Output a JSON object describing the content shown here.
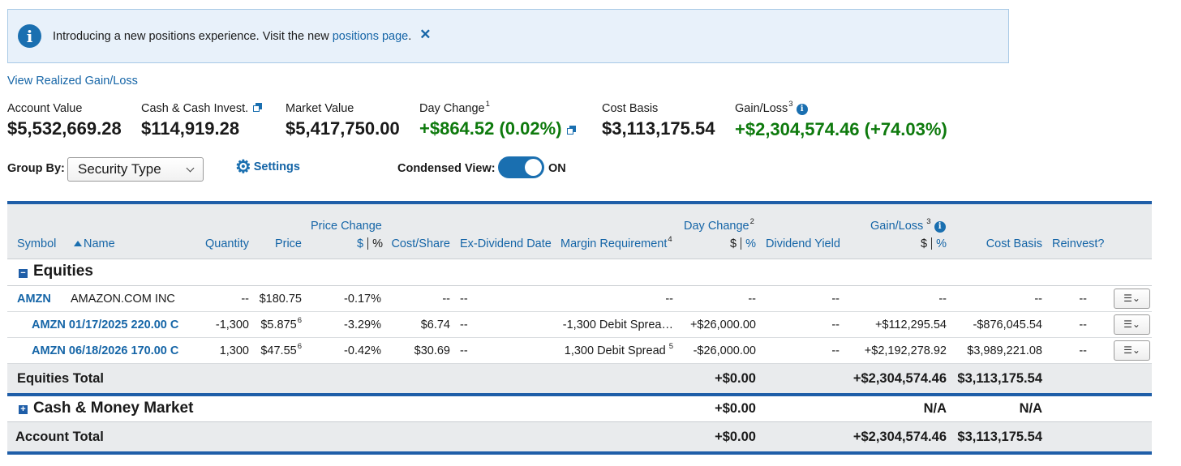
{
  "banner": {
    "text": "Introducing a new positions experience. Visit the new",
    "link": "positions page",
    "period": ".",
    "close": "✕"
  },
  "realized_link": "View Realized Gain/Loss",
  "summary": {
    "account_value": {
      "label": "Account Value",
      "value": "$5,532,669.28"
    },
    "cash": {
      "label": "Cash & Cash Invest.",
      "value": "$114,919.28"
    },
    "market_value": {
      "label": "Market Value",
      "value": "$5,417,750.00"
    },
    "day_change": {
      "label": "Day Change",
      "sup": "1",
      "value": "+$864.52 (0.02%)"
    },
    "cost_basis": {
      "label": "Cost Basis",
      "value": "$3,113,175.54"
    },
    "gain_loss": {
      "label": "Gain/Loss",
      "sup": "3",
      "value": "+$2,304,574.46 (+74.03%)"
    }
  },
  "controls": {
    "group_by_label": "Group By:",
    "group_by_value": "Security Type",
    "settings_label": "Settings",
    "condensed_label": "Condensed View:",
    "condensed_state": "ON"
  },
  "table": {
    "headers": {
      "symbol": "Symbol",
      "name": "Name",
      "quantity": "Quantity",
      "price": "Price",
      "price_change": "Price Change",
      "dollar": "$",
      "percent": "%",
      "cost_share": "Cost/Share",
      "ex_dividend": "Ex-Dividend Date",
      "margin_req": "Margin Requirement",
      "margin_sup": "4",
      "day_change": "Day Change",
      "day_change_sup": "2",
      "dividend_yield": "Dividend Yield",
      "gain_loss": "Gain/Loss",
      "gain_loss_sup": "3",
      "cost_basis": "Cost Basis",
      "reinvest": "Reinvest?"
    },
    "sections": {
      "equities": "Equities",
      "equities_total": "Equities Total",
      "cash": "Cash & Money Market",
      "account_total": "Account Total"
    },
    "rows": [
      {
        "symbol": "AMZN",
        "name": "AMAZON.COM INC",
        "quantity": "--",
        "price": "$180.75",
        "price_sup": "",
        "price_change": "-0.17%",
        "cost_share": "--",
        "ex_div": "--",
        "margin": "--",
        "day_change": "--",
        "dividend_yield": "--",
        "gain_loss": "--",
        "cost_basis": "--",
        "reinvest": "--",
        "menu": "☰⌄"
      },
      {
        "symbol": "AMZN 01/17/2025 220.00 C",
        "name": "",
        "quantity": "-1,300",
        "price": "$5.875",
        "price_sup": "6",
        "price_change": "-3.29%",
        "cost_share": "$6.74",
        "ex_div": "--",
        "margin": "-1,300 Debit Sprea…",
        "day_change": "+$26,000.00",
        "dividend_yield": "--",
        "gain_loss": "+$112,295.54",
        "cost_basis": "-$876,045.54",
        "reinvest": "--",
        "menu": "☰⌄"
      },
      {
        "symbol": "AMZN 06/18/2026 170.00 C",
        "name": "",
        "quantity": "1,300",
        "price": "$47.55",
        "price_sup": "6",
        "price_change": "-0.42%",
        "cost_share": "$30.69",
        "ex_div": "--",
        "margin": "1,300 Debit Spread",
        "margin_sup": "5",
        "day_change": "-$26,000.00",
        "dividend_yield": "--",
        "gain_loss": "+$2,192,278.92",
        "cost_basis": "$3,989,221.08",
        "reinvest": "--",
        "menu": "☰⌄"
      }
    ],
    "equities_total": {
      "day_change": "+$0.00",
      "gain_loss": "+$2,304,574.46",
      "cost_basis": "$3,113,175.54"
    },
    "cash_total": {
      "day_change": "+$0.00",
      "gain_loss": "N/A",
      "cost_basis": "N/A"
    },
    "account_total": {
      "day_change": "+$0.00",
      "gain_loss": "+$2,304,574.46",
      "cost_basis": "$3,113,175.54"
    }
  },
  "colors": {
    "accent": "#1565a7",
    "positive": "#0e7a0d",
    "negative": "#b3001b",
    "bar": "#1f5ea8",
    "header_bg": "#e9ebed"
  }
}
